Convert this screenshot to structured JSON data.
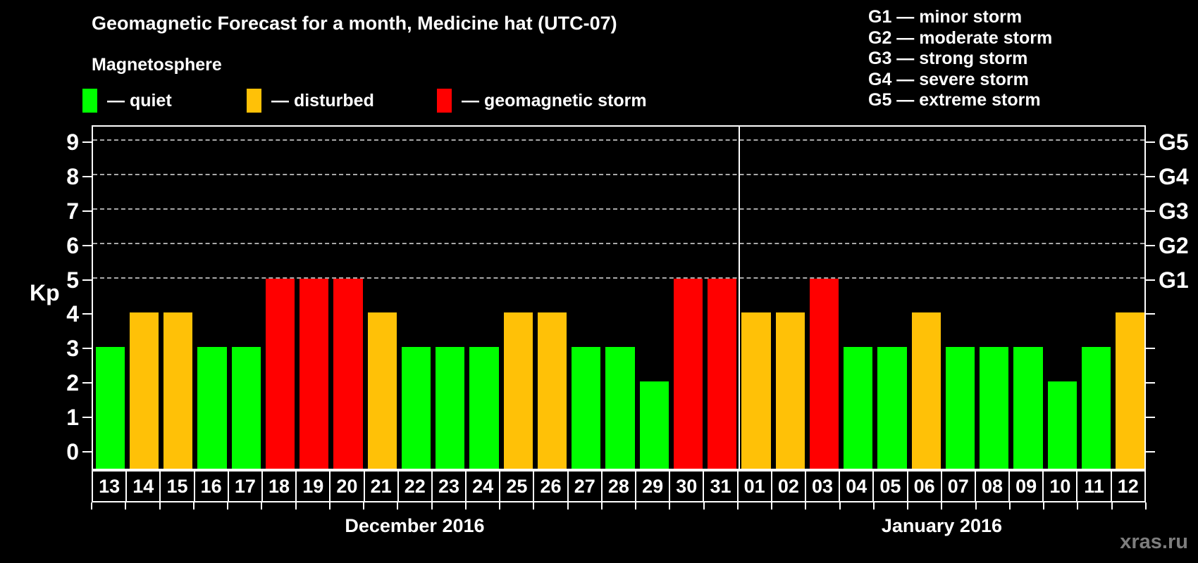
{
  "title": "Geomagnetic Forecast for a month, Medicine hat (UTC-07)",
  "subtitle": "Magnetosphere",
  "legend": {
    "items": [
      {
        "label": "— quiet",
        "status": "quiet",
        "color": "#00ff00"
      },
      {
        "label": "— disturbed",
        "status": "disturbed",
        "color": "#ffc107"
      },
      {
        "label": "— geomagnetic storm",
        "status": "storm",
        "color": "#ff0000"
      }
    ]
  },
  "g_legend": [
    "G1 — minor storm",
    "G2 — moderate storm",
    "G3 — strong storm",
    "G4 — severe storm",
    "G5 — extreme storm"
  ],
  "watermark": "xras.ru",
  "chart_data": {
    "type": "bar",
    "title": "Geomagnetic Forecast for a month, Medicine hat (UTC-07)",
    "ylabel": "Kp",
    "ylim": [
      0,
      9
    ],
    "yticks": [
      0,
      1,
      2,
      3,
      4,
      5,
      6,
      7,
      8,
      9
    ],
    "grid_on": true,
    "grid_kp": [
      5,
      6,
      7,
      8,
      9
    ],
    "right_axis": [
      {
        "kp": 5,
        "label": "G1"
      },
      {
        "kp": 6,
        "label": "G2"
      },
      {
        "kp": 7,
        "label": "G3"
      },
      {
        "kp": 8,
        "label": "G4"
      },
      {
        "kp": 9,
        "label": "G5"
      }
    ],
    "status_colors": {
      "quiet": "#00ff00",
      "disturbed": "#ffc107",
      "storm": "#ff0000"
    },
    "months": [
      {
        "label": "December 2016",
        "days": 19
      },
      {
        "label": "January 2016",
        "days": 12
      }
    ],
    "bars": [
      {
        "day": "13",
        "kp": 3,
        "status": "quiet"
      },
      {
        "day": "14",
        "kp": 4,
        "status": "disturbed"
      },
      {
        "day": "15",
        "kp": 4,
        "status": "disturbed"
      },
      {
        "day": "16",
        "kp": 3,
        "status": "quiet"
      },
      {
        "day": "17",
        "kp": 3,
        "status": "quiet"
      },
      {
        "day": "18",
        "kp": 5,
        "status": "storm"
      },
      {
        "day": "19",
        "kp": 5,
        "status": "storm"
      },
      {
        "day": "20",
        "kp": 5,
        "status": "storm"
      },
      {
        "day": "21",
        "kp": 4,
        "status": "disturbed"
      },
      {
        "day": "22",
        "kp": 3,
        "status": "quiet"
      },
      {
        "day": "23",
        "kp": 3,
        "status": "quiet"
      },
      {
        "day": "24",
        "kp": 3,
        "status": "quiet"
      },
      {
        "day": "25",
        "kp": 4,
        "status": "disturbed"
      },
      {
        "day": "26",
        "kp": 4,
        "status": "disturbed"
      },
      {
        "day": "27",
        "kp": 3,
        "status": "quiet"
      },
      {
        "day": "28",
        "kp": 3,
        "status": "quiet"
      },
      {
        "day": "29",
        "kp": 2,
        "status": "quiet"
      },
      {
        "day": "30",
        "kp": 5,
        "status": "storm"
      },
      {
        "day": "31",
        "kp": 5,
        "status": "storm"
      },
      {
        "day": "01",
        "kp": 4,
        "status": "disturbed"
      },
      {
        "day": "02",
        "kp": 4,
        "status": "disturbed"
      },
      {
        "day": "03",
        "kp": 5,
        "status": "storm"
      },
      {
        "day": "04",
        "kp": 3,
        "status": "quiet"
      },
      {
        "day": "05",
        "kp": 3,
        "status": "quiet"
      },
      {
        "day": "06",
        "kp": 4,
        "status": "disturbed"
      },
      {
        "day": "07",
        "kp": 3,
        "status": "quiet"
      },
      {
        "day": "08",
        "kp": 3,
        "status": "quiet"
      },
      {
        "day": "09",
        "kp": 3,
        "status": "quiet"
      },
      {
        "day": "10",
        "kp": 2,
        "status": "quiet"
      },
      {
        "day": "11",
        "kp": 3,
        "status": "quiet"
      },
      {
        "day": "12",
        "kp": 4,
        "status": "disturbed"
      }
    ]
  }
}
